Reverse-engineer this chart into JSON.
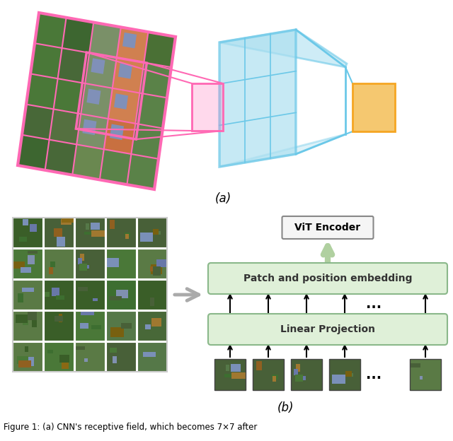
{
  "title_a": "(a)",
  "title_b": "(b)",
  "vit_encoder_text": "ViT Encoder",
  "patch_embed_text": "Patch and position embedding",
  "linear_proj_text": "Linear Projection",
  "dots_text": "...",
  "pink_color": "#FF69B4",
  "blue_color": "#6BC8E8",
  "blue_fill": "#AEE0F0",
  "orange_color": "#F5A623",
  "orange_fill": "#F5C870",
  "green_light": "#dff0d8",
  "green_border": "#8ab88a",
  "arrow_color": "#b0d0a0",
  "bg_color": "#ffffff",
  "caption": "Figure 1: (a) CNN's receptive field, which becomes 7×7 after"
}
